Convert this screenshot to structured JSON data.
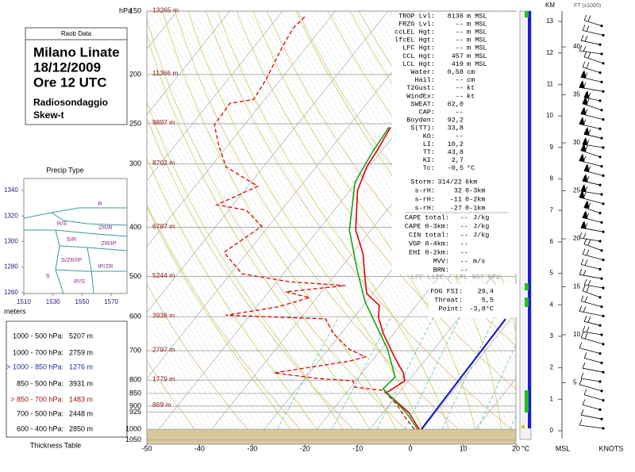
{
  "chart_data": {
    "type": "skewt",
    "y_unit": "hPa",
    "x_unit": "°C",
    "ylim": [
      1070,
      150
    ],
    "log_y": true,
    "yticks": [
      150,
      200,
      250,
      300,
      400,
      500,
      600,
      700,
      800,
      850,
      900,
      925,
      1000,
      1050
    ],
    "xlim": [
      -50,
      20
    ],
    "xticks": [
      -50,
      -40,
      -30,
      -20,
      -10,
      0,
      10,
      20
    ],
    "height_labels": [
      {
        "value": 150,
        "label": "13265 m"
      },
      {
        "value": 200,
        "label": "11366 m"
      },
      {
        "value": 250,
        "label": "9897 m"
      },
      {
        "value": 300,
        "label": "8702 m"
      },
      {
        "value": 400,
        "label": "6787 m"
      },
      {
        "value": 500,
        "label": "5244 m"
      },
      {
        "value": 600,
        "label": "3938 m"
      },
      {
        "value": 700,
        "label": "2797 m"
      },
      {
        "value": 800,
        "label": "1779 m"
      },
      {
        "value": 900,
        "label": "869 m"
      }
    ],
    "series": [
      {
        "color": "#e00000",
        "style": "solid",
        "pressure": [
          1000,
          927,
          847,
          803,
          774,
          720,
          647,
          602,
          570,
          540,
          503,
          451,
          405,
          338,
          304,
          283,
          254
        ],
        "values": [
          -0.6,
          -5.1,
          -12.4,
          -10.7,
          -12.2,
          -16.3,
          -22.0,
          -25.3,
          -27.0,
          -31.2,
          -33.9,
          -37.9,
          -42.9,
          -48.6,
          -50.4,
          -50.9,
          -51.9
        ]
      },
      {
        "color": "#e00000",
        "style": "dashed",
        "pressure": [
          1000,
          944,
          894,
          838,
          826,
          803,
          794,
          774,
          734,
          720,
          695,
          647,
          606,
          596,
          574,
          550,
          536,
          521,
          512,
          494,
          448,
          413,
          398,
          370,
          361,
          332,
          304,
          273,
          251,
          228,
          224,
          204,
          177,
          162,
          153
        ],
        "values": [
          -1.5,
          -5.3,
          -8.6,
          -13.3,
          -19.2,
          -20.5,
          -27.6,
          -36.7,
          -24.2,
          -21.8,
          -26.1,
          -31.5,
          -35.1,
          -54.6,
          -46.0,
          -41.4,
          -46.8,
          -36.4,
          -47.6,
          -57.8,
          -64.5,
          -62.3,
          -61.3,
          -66.7,
          -73.1,
          -68.1,
          -77.1,
          -82.2,
          -85.7,
          -86.0,
          -82.1,
          -82.8,
          -84.6,
          -85.4,
          -84.9
        ]
      },
      {
        "color": "#1aa01a",
        "style": "solid",
        "pressure": [
          1000,
          927,
          832,
          789,
          695,
          560,
          485,
          405,
          326,
          283,
          254
        ],
        "values": [
          -0.9,
          -5.6,
          -13.6,
          -13.1,
          -18.8,
          -30.3,
          -36.6,
          -44.1,
          -50.3,
          -51.6,
          -52.2
        ]
      }
    ]
  },
  "raob": {
    "header": "Raob Data",
    "station": "Milano Linate",
    "date": "18/12/2009",
    "time": "Ore 12 UTC",
    "line1": "Radiosondaggio",
    "line2": "Skew-t"
  },
  "precip_type": {
    "title": "Precip Type",
    "y_label": "meters",
    "yticks": [
      1340,
      1320,
      1300,
      1280,
      1260
    ],
    "xticks": [
      1510,
      1530,
      1550,
      1570
    ],
    "regions": [
      "R",
      "R/S",
      "ZR/R",
      "S/R",
      "ZR/IP",
      "S/ZR/IP",
      "IP/ZR",
      "S",
      "IP/S"
    ]
  },
  "thickness_table": {
    "title": "Thickness Table",
    "rows": [
      {
        "label": "1000 - 500 hPa:",
        "value": "5207 m",
        "color": "#000000"
      },
      {
        "label": "1000 - 700 hPa:",
        "value": "2759 m",
        "color": "#000000"
      },
      {
        "label": "> 1000 - 850 hPa:",
        "value": "1276 m",
        "color": "#1f2f9a"
      },
      {
        "label": "850 - 500 hPa:",
        "value": "3931 m",
        "color": "#000000"
      },
      {
        "label": "> 850 - 700 hPa:",
        "value": "1483 m",
        "color": "#9a1010"
      },
      {
        "label": "700 - 500 hPa:",
        "value": "2448 m",
        "color": "#000000"
      },
      {
        "label": "600 - 400 hPa:",
        "value": "2850 m",
        "color": "#000000"
      }
    ]
  },
  "indices": {
    "main": [
      [
        "TROP Lvl:",
        "8136",
        "m MSL"
      ],
      [
        "FRZG Lvl:",
        "--",
        "m MSL"
      ],
      [
        "ccLEL Hgt:",
        "--",
        "m MSL"
      ],
      [
        "lfcEL Hgt:",
        "--",
        "m MSL"
      ],
      [
        "LFC Hgt:",
        "--",
        "m MSL"
      ],
      [
        "CCL Hgt:",
        "457",
        "m MSL"
      ],
      [
        "LCL Hgt:",
        "419",
        "m MSL"
      ],
      [
        "Water:",
        "0,58",
        "cm"
      ],
      [
        "Hail:",
        "--",
        "cm"
      ],
      [
        "T2Gust:",
        "--",
        "kt"
      ],
      [
        "WindEx:",
        "--",
        "kt"
      ],
      [
        "SWEAT:",
        "62,0"
      ],
      [
        "CAP:",
        "--"
      ],
      [
        "Boyden:",
        "92,2"
      ],
      [
        "S(TT):",
        "33,8"
      ],
      [
        "KO:",
        "--"
      ],
      [
        "LI:",
        "10,2"
      ],
      [
        "TT:",
        "43,8"
      ],
      [
        "KI:",
        "2,7"
      ],
      [
        "Tc:",
        "-0,5",
        "°C"
      ]
    ],
    "storm": [
      [
        "Storm:",
        "314/22",
        "6km"
      ],
      [
        "s-rH:",
        "32",
        "0-3km"
      ],
      [
        "s-rH:",
        "-11",
        "0-2km"
      ],
      [
        "s-rH:",
        "-27",
        "0-1km"
      ]
    ],
    "cape": [
      [
        "CAPE total:",
        "--",
        "J/kg"
      ],
      [
        "CAPE 0-3km:",
        "--",
        "J/kg"
      ],
      [
        "CIN total:",
        "--",
        "J/kg"
      ],
      [
        "VGP 0-4km:",
        "--"
      ],
      [
        "EHI 0-2km:",
        "--"
      ],
      [
        "MVV:",
        "--",
        "m/s"
      ],
      [
        "BRN:",
        "--"
      ]
    ],
    "note": "LFC Lift / LPL 967 hPa",
    "fog": [
      [
        "FOG FSI:",
        "29,4"
      ],
      [
        "Threat:",
        "5,5"
      ],
      [
        "Point:",
        "-3,8°C"
      ]
    ]
  },
  "height_axis": {
    "km_label": "KM",
    "ft_label": "FT (x1000)",
    "bottom_left": "MSL",
    "bottom_right": "KNOTS",
    "km_ticks": [
      0,
      1,
      2,
      3,
      4,
      5,
      6,
      7,
      8,
      9,
      10,
      11,
      12,
      13
    ],
    "ft_ticks": [
      5,
      10,
      15,
      20,
      25,
      30,
      35,
      40
    ]
  }
}
